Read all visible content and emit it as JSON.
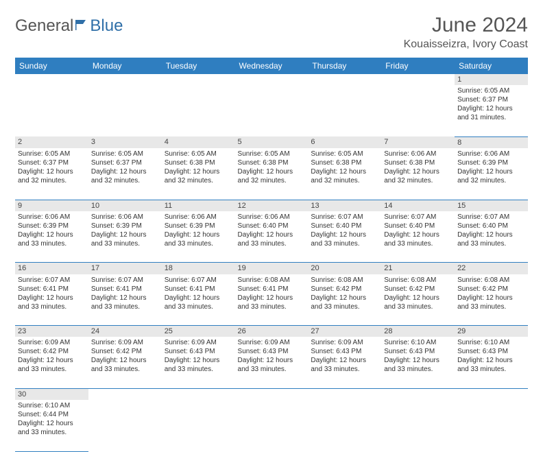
{
  "logo": {
    "text1": "General",
    "text2": "Blue"
  },
  "title": "June 2024",
  "location": "Kouaisseizra, Ivory Coast",
  "header_bg": "#2f7ec0",
  "header_fg": "#ffffff",
  "daynum_bg": "#e8e8e8",
  "border_color": "#2f7ec0",
  "days": [
    "Sunday",
    "Monday",
    "Tuesday",
    "Wednesday",
    "Thursday",
    "Friday",
    "Saturday"
  ],
  "weeks": [
    [
      null,
      null,
      null,
      null,
      null,
      null,
      {
        "n": "1",
        "sr": "Sunrise: 6:05 AM",
        "ss": "Sunset: 6:37 PM",
        "dl": "Daylight: 12 hours and 31 minutes."
      }
    ],
    [
      {
        "n": "2",
        "sr": "Sunrise: 6:05 AM",
        "ss": "Sunset: 6:37 PM",
        "dl": "Daylight: 12 hours and 32 minutes."
      },
      {
        "n": "3",
        "sr": "Sunrise: 6:05 AM",
        "ss": "Sunset: 6:37 PM",
        "dl": "Daylight: 12 hours and 32 minutes."
      },
      {
        "n": "4",
        "sr": "Sunrise: 6:05 AM",
        "ss": "Sunset: 6:38 PM",
        "dl": "Daylight: 12 hours and 32 minutes."
      },
      {
        "n": "5",
        "sr": "Sunrise: 6:05 AM",
        "ss": "Sunset: 6:38 PM",
        "dl": "Daylight: 12 hours and 32 minutes."
      },
      {
        "n": "6",
        "sr": "Sunrise: 6:05 AM",
        "ss": "Sunset: 6:38 PM",
        "dl": "Daylight: 12 hours and 32 minutes."
      },
      {
        "n": "7",
        "sr": "Sunrise: 6:06 AM",
        "ss": "Sunset: 6:38 PM",
        "dl": "Daylight: 12 hours and 32 minutes."
      },
      {
        "n": "8",
        "sr": "Sunrise: 6:06 AM",
        "ss": "Sunset: 6:39 PM",
        "dl": "Daylight: 12 hours and 32 minutes."
      }
    ],
    [
      {
        "n": "9",
        "sr": "Sunrise: 6:06 AM",
        "ss": "Sunset: 6:39 PM",
        "dl": "Daylight: 12 hours and 33 minutes."
      },
      {
        "n": "10",
        "sr": "Sunrise: 6:06 AM",
        "ss": "Sunset: 6:39 PM",
        "dl": "Daylight: 12 hours and 33 minutes."
      },
      {
        "n": "11",
        "sr": "Sunrise: 6:06 AM",
        "ss": "Sunset: 6:39 PM",
        "dl": "Daylight: 12 hours and 33 minutes."
      },
      {
        "n": "12",
        "sr": "Sunrise: 6:06 AM",
        "ss": "Sunset: 6:40 PM",
        "dl": "Daylight: 12 hours and 33 minutes."
      },
      {
        "n": "13",
        "sr": "Sunrise: 6:07 AM",
        "ss": "Sunset: 6:40 PM",
        "dl": "Daylight: 12 hours and 33 minutes."
      },
      {
        "n": "14",
        "sr": "Sunrise: 6:07 AM",
        "ss": "Sunset: 6:40 PM",
        "dl": "Daylight: 12 hours and 33 minutes."
      },
      {
        "n": "15",
        "sr": "Sunrise: 6:07 AM",
        "ss": "Sunset: 6:40 PM",
        "dl": "Daylight: 12 hours and 33 minutes."
      }
    ],
    [
      {
        "n": "16",
        "sr": "Sunrise: 6:07 AM",
        "ss": "Sunset: 6:41 PM",
        "dl": "Daylight: 12 hours and 33 minutes."
      },
      {
        "n": "17",
        "sr": "Sunrise: 6:07 AM",
        "ss": "Sunset: 6:41 PM",
        "dl": "Daylight: 12 hours and 33 minutes."
      },
      {
        "n": "18",
        "sr": "Sunrise: 6:07 AM",
        "ss": "Sunset: 6:41 PM",
        "dl": "Daylight: 12 hours and 33 minutes."
      },
      {
        "n": "19",
        "sr": "Sunrise: 6:08 AM",
        "ss": "Sunset: 6:41 PM",
        "dl": "Daylight: 12 hours and 33 minutes."
      },
      {
        "n": "20",
        "sr": "Sunrise: 6:08 AM",
        "ss": "Sunset: 6:42 PM",
        "dl": "Daylight: 12 hours and 33 minutes."
      },
      {
        "n": "21",
        "sr": "Sunrise: 6:08 AM",
        "ss": "Sunset: 6:42 PM",
        "dl": "Daylight: 12 hours and 33 minutes."
      },
      {
        "n": "22",
        "sr": "Sunrise: 6:08 AM",
        "ss": "Sunset: 6:42 PM",
        "dl": "Daylight: 12 hours and 33 minutes."
      }
    ],
    [
      {
        "n": "23",
        "sr": "Sunrise: 6:09 AM",
        "ss": "Sunset: 6:42 PM",
        "dl": "Daylight: 12 hours and 33 minutes."
      },
      {
        "n": "24",
        "sr": "Sunrise: 6:09 AM",
        "ss": "Sunset: 6:42 PM",
        "dl": "Daylight: 12 hours and 33 minutes."
      },
      {
        "n": "25",
        "sr": "Sunrise: 6:09 AM",
        "ss": "Sunset: 6:43 PM",
        "dl": "Daylight: 12 hours and 33 minutes."
      },
      {
        "n": "26",
        "sr": "Sunrise: 6:09 AM",
        "ss": "Sunset: 6:43 PM",
        "dl": "Daylight: 12 hours and 33 minutes."
      },
      {
        "n": "27",
        "sr": "Sunrise: 6:09 AM",
        "ss": "Sunset: 6:43 PM",
        "dl": "Daylight: 12 hours and 33 minutes."
      },
      {
        "n": "28",
        "sr": "Sunrise: 6:10 AM",
        "ss": "Sunset: 6:43 PM",
        "dl": "Daylight: 12 hours and 33 minutes."
      },
      {
        "n": "29",
        "sr": "Sunrise: 6:10 AM",
        "ss": "Sunset: 6:43 PM",
        "dl": "Daylight: 12 hours and 33 minutes."
      }
    ],
    [
      {
        "n": "30",
        "sr": "Sunrise: 6:10 AM",
        "ss": "Sunset: 6:44 PM",
        "dl": "Daylight: 12 hours and 33 minutes."
      },
      null,
      null,
      null,
      null,
      null,
      null
    ]
  ]
}
